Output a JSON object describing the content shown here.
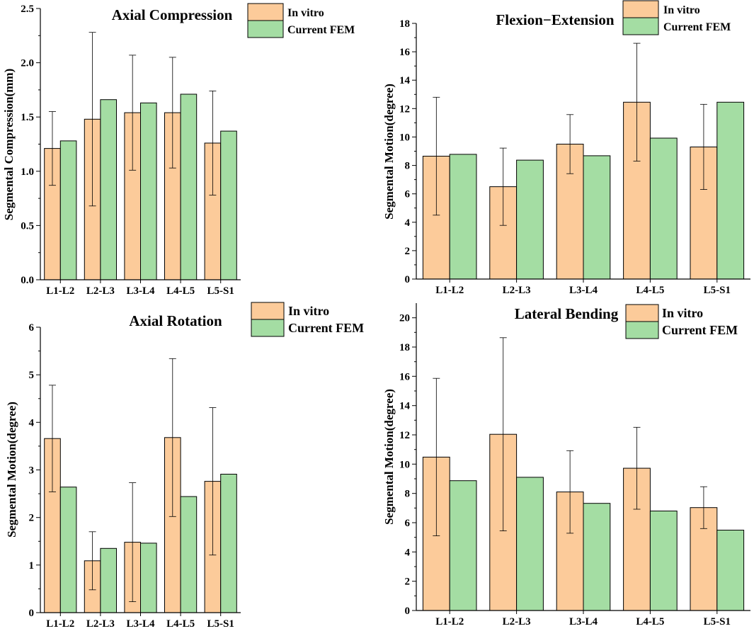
{
  "colors": {
    "in_vitro": "#FCCB9A",
    "fem": "#A4DDA3",
    "stroke": "#000000"
  },
  "chart_data": [
    {
      "type": "bar",
      "title": "Axial Compression",
      "ylabel": "Segmental Compression(mm)",
      "xlabel": "",
      "ylim": [
        0,
        2.5
      ],
      "yticks": [
        "0.0",
        "0.5",
        "1.0",
        "1.5",
        "2.0",
        "2.5"
      ],
      "categories": [
        "L1-L2",
        "L2-L3",
        "L3-L4",
        "L4-L5",
        "L5-S1"
      ],
      "series": [
        {
          "name": "In vitro",
          "values": [
            1.21,
            1.48,
            1.54,
            1.54,
            1.26
          ],
          "err_low": [
            0.87,
            0.68,
            1.01,
            1.03,
            0.78
          ],
          "err_high": [
            1.55,
            2.28,
            2.07,
            2.05,
            1.74
          ]
        },
        {
          "name": "Current FEM",
          "values": [
            1.28,
            1.66,
            1.63,
            1.71,
            1.37
          ]
        }
      ]
    },
    {
      "type": "bar",
      "title": "Flexion−Extension",
      "ylabel": "Segmental Motion(degree)",
      "xlabel": "",
      "ylim": [
        0,
        18
      ],
      "yticks": [
        "0",
        "2",
        "4",
        "6",
        "8",
        "10",
        "12",
        "14",
        "16",
        "18"
      ],
      "categories": [
        "L1-L2",
        "L2-L3",
        "L3-L4",
        "L4-L5",
        "L5-S1"
      ],
      "series": [
        {
          "name": "In vitro",
          "values": [
            8.65,
            6.5,
            9.5,
            12.45,
            9.3
          ],
          "err_low": [
            4.5,
            3.78,
            7.42,
            8.3,
            6.3
          ],
          "err_high": [
            12.8,
            9.22,
            11.58,
            16.6,
            12.3
          ]
        },
        {
          "name": "Current FEM",
          "values": [
            8.78,
            8.37,
            8.68,
            9.92,
            12.45
          ]
        }
      ]
    },
    {
      "type": "bar",
      "title": "Axial Rotation",
      "ylabel": "Segmental Motion(degree)",
      "xlabel": "",
      "ylim": [
        0,
        6
      ],
      "yticks": [
        "0",
        "1",
        "2",
        "3",
        "4",
        "5",
        "6"
      ],
      "categories": [
        "L1-L2",
        "L2-L3",
        "L3-L4",
        "L4-L5",
        "L5-S1"
      ],
      "series": [
        {
          "name": "In vitro",
          "values": [
            3.66,
            1.09,
            1.48,
            3.68,
            2.76
          ],
          "err_low": [
            2.54,
            0.48,
            0.23,
            2.02,
            1.21
          ],
          "err_high": [
            4.78,
            1.7,
            2.73,
            5.34,
            4.31
          ]
        },
        {
          "name": "Current FEM",
          "values": [
            2.64,
            1.35,
            1.46,
            2.44,
            2.91
          ]
        }
      ]
    },
    {
      "type": "bar",
      "title": "Lateral Bending",
      "ylabel": "Segmental Motion(degree)",
      "xlabel": "",
      "ylim": [
        0,
        21
      ],
      "yticks": [
        "0",
        "2",
        "4",
        "6",
        "8",
        "10",
        "12",
        "14",
        "16",
        "18",
        "20"
      ],
      "categories": [
        "L1-L2",
        "L2-L3",
        "L3-L4",
        "L4-L5",
        "L5-S1"
      ],
      "series": [
        {
          "name": "In vitro",
          "values": [
            10.48,
            12.04,
            8.1,
            9.72,
            7.03
          ],
          "err_low": [
            5.1,
            5.44,
            5.28,
            6.92,
            5.6
          ],
          "err_high": [
            15.86,
            18.64,
            10.92,
            12.52,
            8.46
          ]
        },
        {
          "name": "Current FEM",
          "values": [
            8.87,
            9.1,
            7.32,
            6.8,
            5.49
          ]
        }
      ]
    }
  ]
}
